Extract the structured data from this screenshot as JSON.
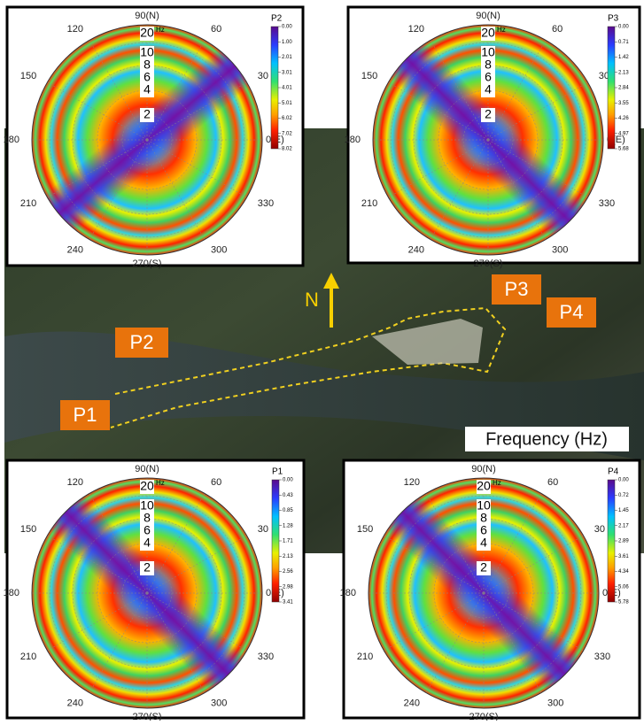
{
  "map": {
    "labels": [
      "P1",
      "P2",
      "P3",
      "P4"
    ],
    "north": "N",
    "frequency_label": "Frequency (Hz)"
  },
  "polar": {
    "angle_labels": [
      "0(E)",
      "30",
      "60",
      "90(N)",
      "120",
      "150",
      "180",
      "210",
      "240",
      "270(S)",
      "300",
      "330"
    ],
    "radial_labels": [
      "20",
      "10",
      "8",
      "6",
      "4",
      "2"
    ],
    "radial_unit": "Hz"
  },
  "panels": [
    {
      "name": "P2",
      "colorbar_ticks": [
        "0.00",
        "1.00",
        "2.01",
        "3.01",
        "4.01",
        "5.01",
        "6.02",
        "7.02",
        "8.02"
      ]
    },
    {
      "name": "P3",
      "colorbar_ticks": [
        "0.00",
        "0.71",
        "1.42",
        "2.13",
        "2.84",
        "3.55",
        "4.26",
        "4.97",
        "5.68"
      ]
    },
    {
      "name": "P1",
      "colorbar_ticks": [
        "0.00",
        "0.43",
        "0.85",
        "1.28",
        "1.71",
        "2.13",
        "2.56",
        "2.98",
        "3.41"
      ]
    },
    {
      "name": "P4",
      "colorbar_ticks": [
        "0.00",
        "0.72",
        "1.45",
        "2.17",
        "2.89",
        "3.61",
        "4.34",
        "5.06",
        "5.78"
      ]
    }
  ]
}
